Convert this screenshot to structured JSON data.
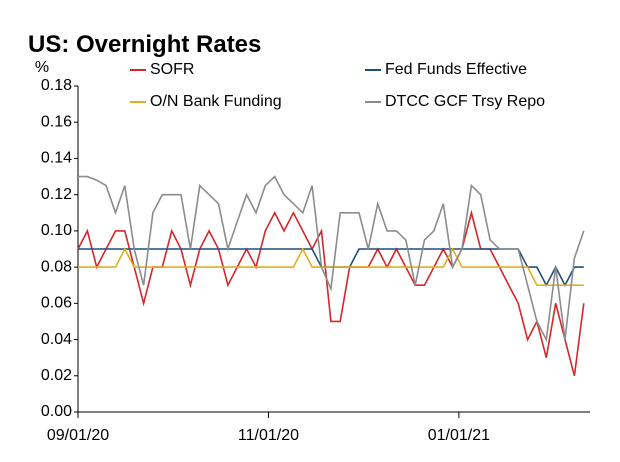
{
  "chart_data": {
    "type": "line",
    "title": "US: Overnight Rates",
    "y_label": "%",
    "x": [
      "09/01/20",
      "09/04/20",
      "09/07/20",
      "09/10/20",
      "09/13/20",
      "09/16/20",
      "09/19/20",
      "09/22/20",
      "09/25/20",
      "09/28/20",
      "10/01/20",
      "10/04/20",
      "10/07/20",
      "10/10/20",
      "10/13/20",
      "10/16/20",
      "10/19/20",
      "10/22/20",
      "10/25/20",
      "10/28/20",
      "10/31/20",
      "11/03/20",
      "11/06/20",
      "11/09/20",
      "11/12/20",
      "11/15/20",
      "11/18/20",
      "11/21/20",
      "11/24/20",
      "11/27/20",
      "11/30/20",
      "12/03/20",
      "12/06/20",
      "12/09/20",
      "12/12/20",
      "12/15/20",
      "12/18/20",
      "12/21/20",
      "12/24/20",
      "12/27/20",
      "12/30/20",
      "01/02/21",
      "01/05/21",
      "01/08/21",
      "01/11/21",
      "01/14/21",
      "01/17/21",
      "01/20/21",
      "01/23/21",
      "01/26/21",
      "01/29/21",
      "02/01/21",
      "02/04/21",
      "02/07/21",
      "02/10/21"
    ],
    "series": [
      {
        "name": "SOFR",
        "color": "#d7262b",
        "values": [
          0.09,
          0.1,
          0.08,
          0.09,
          0.1,
          0.1,
          0.08,
          0.06,
          0.08,
          0.08,
          0.1,
          0.09,
          0.07,
          0.09,
          0.1,
          0.09,
          0.07,
          0.08,
          0.09,
          0.08,
          0.1,
          0.11,
          0.1,
          0.11,
          0.1,
          0.09,
          0.1,
          0.05,
          0.05,
          0.08,
          0.08,
          0.08,
          0.09,
          0.08,
          0.09,
          0.08,
          0.07,
          0.07,
          0.08,
          0.09,
          0.08,
          0.09,
          0.11,
          0.09,
          0.09,
          0.08,
          0.07,
          0.06,
          0.04,
          0.05,
          0.03,
          0.06,
          0.04,
          0.02,
          0.06
        ]
      },
      {
        "name": "Fed Funds Effective",
        "color": "#1f4e79",
        "values": [
          0.09,
          0.09,
          0.09,
          0.09,
          0.09,
          0.09,
          0.09,
          0.09,
          0.09,
          0.09,
          0.09,
          0.09,
          0.09,
          0.09,
          0.09,
          0.09,
          0.09,
          0.09,
          0.09,
          0.09,
          0.09,
          0.09,
          0.09,
          0.09,
          0.09,
          0.09,
          0.08,
          0.08,
          0.08,
          0.08,
          0.09,
          0.09,
          0.09,
          0.09,
          0.09,
          0.09,
          0.09,
          0.09,
          0.09,
          0.09,
          0.09,
          0.09,
          0.09,
          0.09,
          0.09,
          0.09,
          0.09,
          0.09,
          0.08,
          0.08,
          0.07,
          0.08,
          0.07,
          0.08,
          0.08
        ]
      },
      {
        "name": "O/N Bank Funding",
        "color": "#e0b020",
        "values": [
          0.08,
          0.08,
          0.08,
          0.08,
          0.08,
          0.09,
          0.08,
          0.08,
          0.08,
          0.08,
          0.08,
          0.08,
          0.08,
          0.08,
          0.08,
          0.08,
          0.08,
          0.08,
          0.08,
          0.08,
          0.08,
          0.08,
          0.08,
          0.08,
          0.09,
          0.08,
          0.08,
          0.08,
          0.08,
          0.08,
          0.08,
          0.08,
          0.08,
          0.08,
          0.08,
          0.08,
          0.08,
          0.08,
          0.08,
          0.08,
          0.09,
          0.08,
          0.08,
          0.08,
          0.08,
          0.08,
          0.08,
          0.08,
          0.08,
          0.07,
          0.07,
          0.07,
          0.07,
          0.07,
          0.07
        ]
      },
      {
        "name": "DTCC GCF Trsy Repo",
        "color": "#8c8c8c",
        "values": [
          0.13,
          0.13,
          0.128,
          0.125,
          0.11,
          0.125,
          0.09,
          0.07,
          0.11,
          0.12,
          0.12,
          0.12,
          0.09,
          0.125,
          0.12,
          0.115,
          0.09,
          0.105,
          0.12,
          0.11,
          0.125,
          0.13,
          0.12,
          0.115,
          0.11,
          0.125,
          0.08,
          0.068,
          0.11,
          0.11,
          0.11,
          0.09,
          0.115,
          0.1,
          0.1,
          0.095,
          0.07,
          0.095,
          0.1,
          0.115,
          0.08,
          0.09,
          0.125,
          0.12,
          0.095,
          0.09,
          0.09,
          0.09,
          0.07,
          0.05,
          0.04,
          0.08,
          0.04,
          0.085,
          0.1
        ]
      }
    ],
    "xlim": [
      "09/01/20",
      "02/12/21"
    ],
    "xticks": [
      "09/01/20",
      "11/01/20",
      "01/01/21"
    ],
    "ylim": [
      0,
      0.18
    ],
    "yticks": [
      {
        "value": 0,
        "label": "0.00"
      },
      {
        "value": 0.02,
        "label": "0.02"
      },
      {
        "value": 0.04,
        "label": "0.04"
      },
      {
        "value": 0.06,
        "label": "0.06"
      },
      {
        "value": 0.08,
        "label": "0.08"
      },
      {
        "value": 0.1,
        "label": "0.10"
      },
      {
        "value": 0.12,
        "label": "0.12"
      },
      {
        "value": 0.14,
        "label": "0.14"
      },
      {
        "value": 0.16,
        "label": "0.16"
      },
      {
        "value": 0.18,
        "label": "0.18"
      }
    ]
  }
}
